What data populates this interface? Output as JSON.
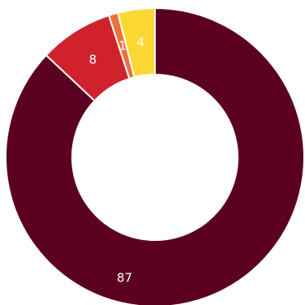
{
  "chart_data": {
    "type": "pie",
    "donut": true,
    "title": "",
    "slices": [
      {
        "label": "87",
        "value": 87,
        "color": "#5c0022"
      },
      {
        "label": "8",
        "value": 8,
        "color": "#d0222c"
      },
      {
        "label": "1",
        "value": 1,
        "color": "#e8743b"
      },
      {
        "label": "4",
        "value": 4,
        "color": "#fdd835"
      }
    ],
    "legend": "none"
  }
}
